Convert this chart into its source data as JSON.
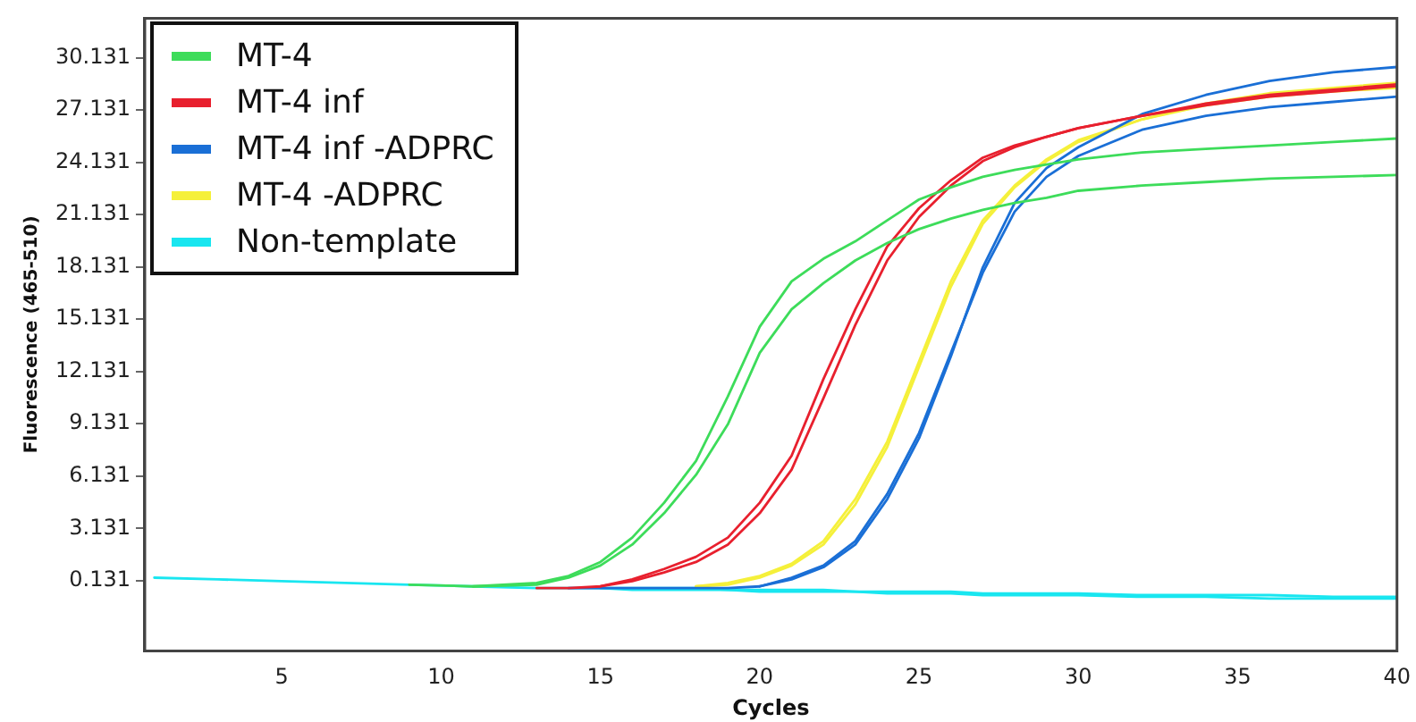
{
  "chart_data": {
    "type": "line",
    "xlabel": "Cycles",
    "ylabel": "Fluorescence (465-510)",
    "x": [
      1,
      3,
      5,
      7,
      9,
      11,
      13,
      14,
      15,
      16,
      17,
      18,
      19,
      20,
      21,
      22,
      23,
      24,
      25,
      26,
      27,
      28,
      29,
      30,
      32,
      34,
      36,
      38,
      40
    ],
    "xlim": [
      0.7,
      40
    ],
    "xticks": [
      5,
      10,
      15,
      20,
      25,
      30,
      35,
      40
    ],
    "ylim": [
      -3.9,
      32.4
    ],
    "yticks": [
      0.131,
      3.131,
      6.131,
      9.131,
      12.131,
      15.131,
      18.131,
      21.131,
      24.131,
      27.131,
      30.131
    ],
    "grid": false,
    "legend": "top left",
    "marker": "none",
    "line_style": "solid",
    "series": [
      {
        "name": "MT-4",
        "color": "#3ddc5a",
        "values": [
          null,
          null,
          null,
          null,
          -0.1,
          -0.2,
          0.0,
          0.4,
          1.2,
          2.6,
          4.6,
          7.0,
          10.7,
          14.7,
          17.3,
          18.6,
          19.6,
          20.8,
          22.0,
          22.7,
          23.3,
          23.7,
          24.0,
          24.3,
          24.7,
          24.9,
          25.1,
          25.3,
          25.5
        ]
      },
      {
        "color": "#3ddc5a",
        "values": [
          null,
          null,
          null,
          null,
          null,
          -0.2,
          -0.1,
          0.3,
          1.0,
          2.2,
          4.0,
          6.2,
          9.1,
          13.2,
          15.7,
          17.2,
          18.5,
          19.5,
          20.3,
          20.9,
          21.4,
          21.8,
          22.1,
          22.5,
          22.8,
          23.0,
          23.2,
          23.3,
          23.4
        ]
      },
      {
        "name": "MT-4 inf",
        "color": "#e8202e",
        "values": [
          null,
          null,
          null,
          null,
          null,
          null,
          -0.3,
          -0.3,
          -0.2,
          0.2,
          0.8,
          1.5,
          2.6,
          4.6,
          7.3,
          11.7,
          15.7,
          19.3,
          21.5,
          23.1,
          24.4,
          25.1,
          25.6,
          26.1,
          26.8,
          27.5,
          28.0,
          28.3,
          28.6
        ]
      },
      {
        "color": "#e8202e",
        "values": [
          null,
          null,
          null,
          null,
          null,
          null,
          null,
          null,
          -0.2,
          0.1,
          0.6,
          1.2,
          2.2,
          4.0,
          6.5,
          10.6,
          14.8,
          18.5,
          21.0,
          22.8,
          24.2,
          25.0,
          25.6,
          26.1,
          26.8,
          27.4,
          27.9,
          28.2,
          28.5
        ]
      },
      {
        "name": "MT-4 inf -ADPRC",
        "color": "#1a6fd6",
        "values": [
          null,
          null,
          null,
          null,
          null,
          null,
          null,
          -0.3,
          -0.3,
          -0.3,
          -0.3,
          -0.3,
          -0.3,
          -0.2,
          0.3,
          1.0,
          2.4,
          5.1,
          8.6,
          13.2,
          17.8,
          21.3,
          23.3,
          24.5,
          26.0,
          26.8,
          27.3,
          27.6,
          27.9
        ]
      },
      {
        "color": "#1a6fd6",
        "values": [
          null,
          null,
          null,
          null,
          null,
          null,
          null,
          null,
          null,
          null,
          null,
          null,
          null,
          -0.2,
          0.2,
          0.9,
          2.2,
          4.8,
          8.3,
          13.0,
          18.1,
          21.8,
          23.8,
          25.0,
          26.9,
          28.0,
          28.8,
          29.3,
          29.6
        ]
      },
      {
        "name": "MT-4 -ADPRC",
        "color": "#f5f03a",
        "values": [
          null,
          null,
          null,
          null,
          null,
          null,
          null,
          null,
          null,
          null,
          null,
          -0.2,
          0.0,
          0.4,
          1.1,
          2.4,
          4.8,
          8.1,
          12.7,
          17.3,
          20.8,
          22.8,
          24.3,
          25.4,
          26.6,
          27.4,
          27.9,
          28.2,
          28.4
        ]
      },
      {
        "color": "#f5f03a",
        "values": [
          null,
          null,
          null,
          null,
          null,
          null,
          null,
          null,
          null,
          null,
          null,
          -0.2,
          -0.1,
          0.3,
          1.0,
          2.2,
          4.5,
          7.8,
          12.4,
          17.0,
          20.6,
          22.7,
          24.2,
          25.3,
          26.6,
          27.5,
          28.1,
          28.4,
          28.7
        ]
      },
      {
        "name": "Non-template",
        "color": "#19e6f0",
        "values": [
          null,
          null,
          null,
          null,
          null,
          null,
          null,
          null,
          -0.3,
          -0.3,
          -0.3,
          -0.3,
          -0.4,
          -0.4,
          -0.4,
          -0.4,
          -0.5,
          -0.5,
          -0.5,
          -0.5,
          -0.6,
          -0.6,
          -0.6,
          -0.6,
          -0.7,
          -0.7,
          -0.7,
          -0.8,
          -0.8
        ]
      },
      {
        "color": "#19e6f0",
        "values": [
          0.3,
          0.2,
          0.1,
          0.0,
          -0.1,
          -0.2,
          -0.3,
          -0.3,
          -0.3,
          -0.4,
          -0.4,
          -0.4,
          -0.4,
          -0.5,
          -0.5,
          -0.5,
          -0.5,
          -0.6,
          -0.6,
          -0.6,
          -0.7,
          -0.7,
          -0.7,
          -0.7,
          -0.8,
          -0.8,
          -0.9,
          -0.9,
          -0.9
        ]
      }
    ]
  }
}
